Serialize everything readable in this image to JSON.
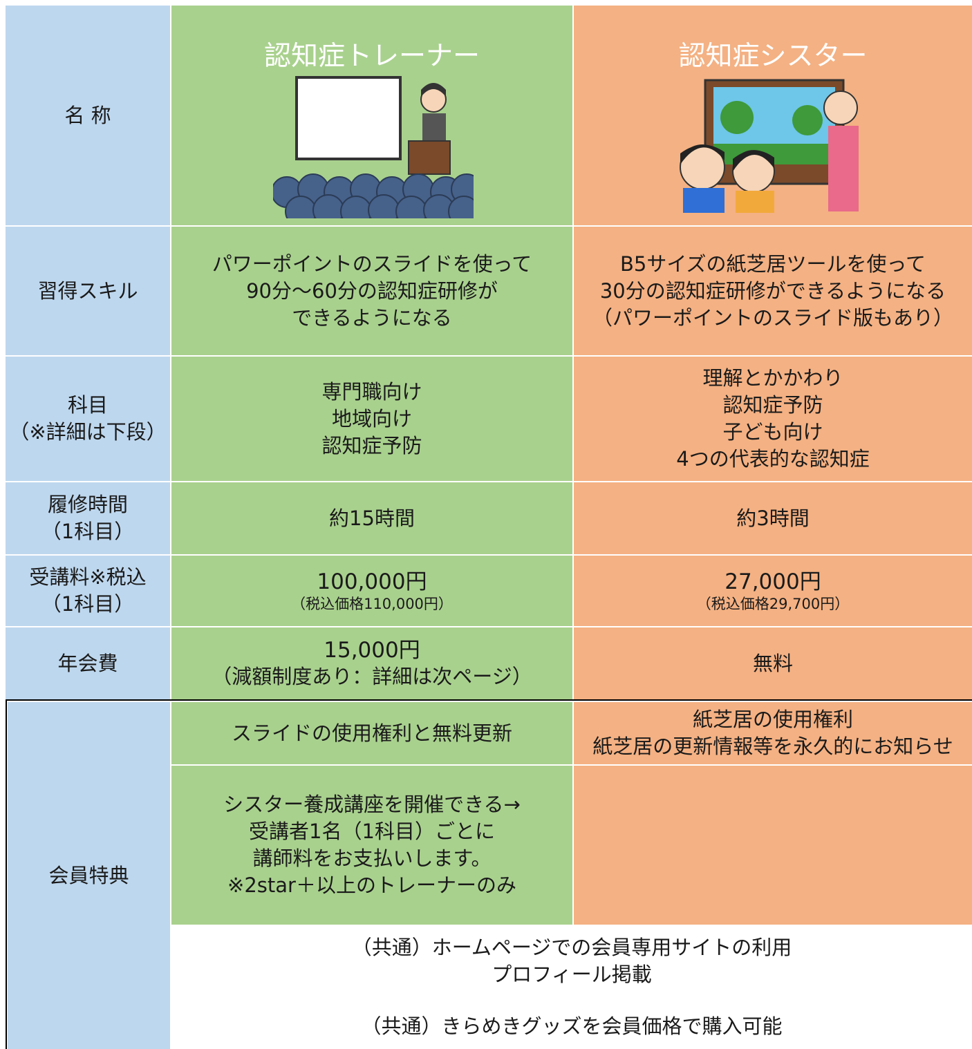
{
  "table": {
    "columns": [
      "認知症トレーナー",
      "認知症シスター"
    ],
    "rows": [
      {
        "label": [
          "名 称"
        ]
      },
      {
        "label": [
          "習得スキル"
        ],
        "trainer": [
          "パワーポイントのスライドを使って",
          "90分～60分の認知症研修が",
          "できるようになる"
        ],
        "sister": [
          "B5サイズの紙芝居ツールを使って",
          "30分の認知症研修ができるようになる",
          "（パワーポイントのスライド版もあり）"
        ]
      },
      {
        "label": [
          "科目",
          "（※詳細は下段）"
        ],
        "trainer": [
          "専門職向け",
          "地域向け",
          "認知症予防"
        ],
        "sister": [
          "理解とかかわり",
          "認知症予防",
          "子ども向け",
          "4つの代表的な認知症"
        ]
      },
      {
        "label": [
          "履修時間",
          "（1科目）"
        ],
        "trainer": [
          "約15時間"
        ],
        "sister": [
          "約3時間"
        ]
      },
      {
        "label": [
          "受講料※税込",
          "（1科目）"
        ],
        "trainer": [
          "100,000円"
        ],
        "trainer_note": [
          "（税込価格110,000円）"
        ],
        "sister": [
          "27,000円"
        ],
        "sister_note": [
          "（税込価格29,700円）"
        ]
      },
      {
        "label": [
          "年会費"
        ],
        "trainer": [
          "15,000円",
          "（減額制度あり：詳細は次ページ）"
        ],
        "sister": [
          "無料"
        ]
      }
    ],
    "benefits": {
      "label": "会員特典",
      "trainer": [
        [
          "スライドの使用権利と無料更新"
        ],
        [
          "シスター養成講座を開催できる→",
          "受講者1名（1科目）ごとに",
          "講師料をお支払いします。",
          "※2star＋以上のトレーナーのみ"
        ]
      ],
      "sister": [
        [
          "紙芝居の使用権利",
          "紙芝居の更新情報等を永久的にお知らせ"
        ]
      ],
      "common": [
        [
          "（共通）ホームページでの会員専用サイトの利用",
          "プロフィール掲載"
        ],
        [
          "（共通）きらめきグッズを会員価格で購入可能"
        ]
      ]
    }
  }
}
